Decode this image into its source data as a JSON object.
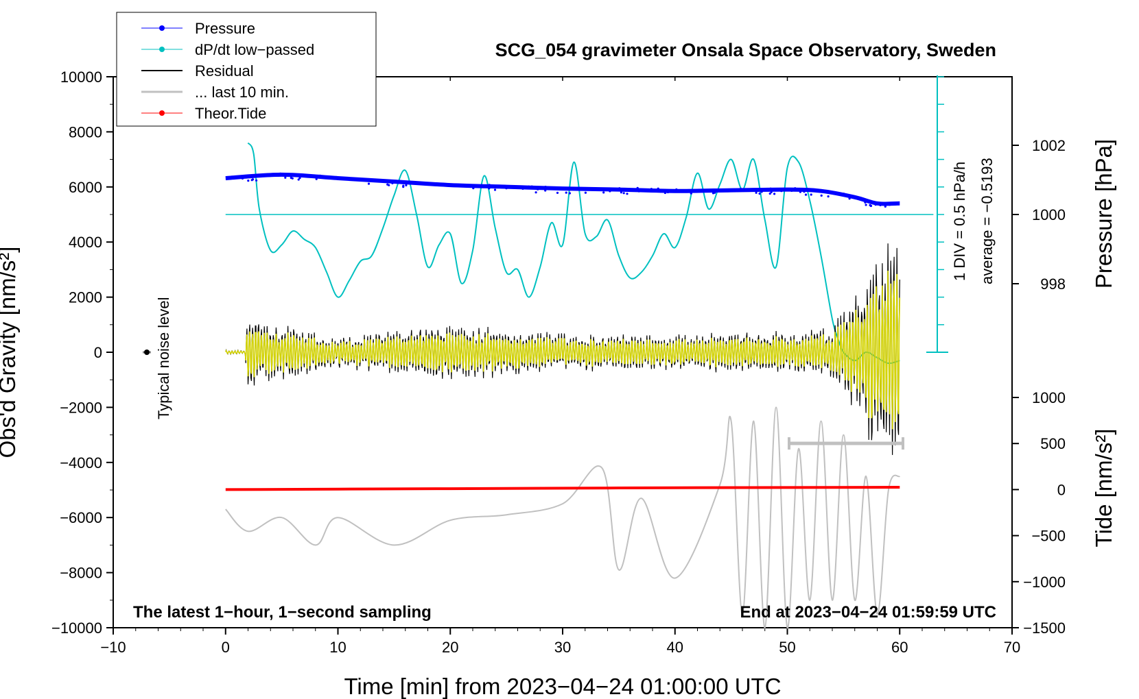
{
  "chart_data": {
    "type": "line",
    "title": "SCG_054 gravimeter Onsala Space Observatory, Sweden",
    "xlabel": "Time [min] from 2023−04−24 01:00:00 UTC",
    "ylabel_left": "Obs'd Gravity [nm/s²]",
    "ylabel_right_pressure": "Pressure [hPa]",
    "ylabel_right_tide": "Tide [nm/s²]",
    "xlim": [
      -10,
      70
    ],
    "ylim": [
      -10000,
      10000
    ],
    "x_ticks": [
      "−10",
      "0",
      "10",
      "20",
      "30",
      "40",
      "50",
      "60",
      "70"
    ],
    "y_ticks": [
      "10000",
      "8000",
      "6000",
      "4000",
      "2000",
      "0",
      "−2000",
      "−4000",
      "−6000",
      "−8000",
      "−10000"
    ],
    "pressure_ticks": [
      "1002",
      "1000",
      "998"
    ],
    "pressure_ticks_values": [
      1002,
      1000,
      998
    ],
    "tide_ticks": [
      "1000",
      "500",
      "0",
      "−500",
      "−1000",
      "−1500"
    ],
    "tide_ticks_values": [
      1000,
      500,
      0,
      -500,
      -1000,
      -1500
    ],
    "legend": [
      {
        "label": "Pressure",
        "color": "#0000ff",
        "marker": true
      },
      {
        "label": "dP/dt low−passed",
        "color": "#00c0c0",
        "marker": true
      },
      {
        "label": "Residual",
        "color": "#000000",
        "marker": false
      },
      {
        "label": "... last 10 min.",
        "color": "#c0c0c0",
        "marker": false
      },
      {
        "label": "Theor.Tide",
        "color": "#ff0000",
        "marker": true
      }
    ],
    "series": [
      {
        "name": "Pressure",
        "unit": "hPa",
        "x": [
          0,
          5,
          10,
          15,
          20,
          25,
          30,
          35,
          40,
          45,
          50,
          53,
          56,
          58,
          60
        ],
        "values": [
          1001.05,
          1001.15,
          1001.05,
          1000.95,
          1000.85,
          1000.8,
          1000.75,
          1000.72,
          1000.68,
          1000.7,
          1000.72,
          1000.68,
          1000.5,
          1000.32,
          1000.32
        ]
      },
      {
        "name": "dP/dt low-passed",
        "unit": "nm/s² axis equivalent",
        "x": [
          2,
          2.5,
          3,
          4,
          5,
          6,
          7,
          8,
          9,
          10,
          11,
          12,
          13,
          14,
          15,
          16,
          17,
          18,
          19,
          20,
          21,
          22,
          23,
          24,
          25,
          26,
          27,
          28,
          29,
          30,
          31,
          32,
          33,
          34,
          35,
          36,
          37,
          38,
          39,
          40,
          41,
          42,
          43,
          44,
          45,
          46,
          47,
          48,
          49,
          50,
          51,
          52,
          53,
          54,
          54.5,
          55,
          56,
          57,
          58,
          59,
          60
        ],
        "values": [
          7600,
          7200,
          5200,
          3700,
          3900,
          4400,
          4100,
          3800,
          2900,
          2000,
          2600,
          3300,
          3500,
          4500,
          5700,
          6600,
          5000,
          3100,
          3900,
          4300,
          2500,
          3700,
          6400,
          4500,
          2900,
          3000,
          2000,
          3100,
          4700,
          3900,
          6900,
          4300,
          4200,
          4800,
          3500,
          2700,
          2900,
          3500,
          4300,
          3800,
          4900,
          6500,
          5200,
          6100,
          7000,
          5900,
          7000,
          4800,
          3100,
          6700,
          6900,
          5500,
          3500,
          1200,
          500,
          0,
          -300,
          0,
          -200,
          -400,
          -300
        ]
      },
      {
        "name": "Residual",
        "unit": "nm/s²",
        "x": [
          0,
          2,
          10,
          20,
          30,
          40,
          50,
          54,
          56,
          58,
          60
        ],
        "values": [
          0,
          1300,
          600,
          1100,
          700,
          700,
          800,
          900,
          2500,
          -4200,
          3800
        ]
      },
      {
        "name": "... last 10 min.",
        "unit": "nm/s² (offset)",
        "x": [
          0,
          2,
          5,
          8,
          10,
          15,
          20,
          25,
          30,
          33.5,
          35,
          37,
          40,
          44,
          45,
          46,
          47,
          48,
          49,
          50,
          51,
          52,
          53,
          54,
          55,
          56,
          57,
          58,
          59,
          60
        ],
        "values": [
          -5700,
          -6500,
          -6000,
          -7000,
          -6000,
          -7000,
          -6100,
          -5900,
          -5500,
          -4200,
          -7900,
          -5300,
          -8200,
          -4800,
          -2500,
          -9500,
          -2500,
          -10000,
          -2000,
          -10000,
          -3500,
          -9000,
          -2500,
          -9000,
          -3000,
          -9000,
          -4500,
          -9500,
          -5000,
          -4500
        ]
      },
      {
        "name": "Theor.Tide",
        "unit": "nm/s²",
        "x": [
          0,
          10,
          20,
          30,
          40,
          50,
          60
        ],
        "values": [
          0,
          5,
          10,
          15,
          20,
          22,
          25
        ]
      }
    ],
    "pressure_annotation": {
      "div": "1 DIV = 0.5 hPa/h",
      "average": "average = −0.5193"
    },
    "noise_level_label": "Typical noise level",
    "footer_left": "The latest 1−hour, 1−second sampling",
    "footer_right": "End at 2023−04−24 01:59:59 UTC"
  }
}
